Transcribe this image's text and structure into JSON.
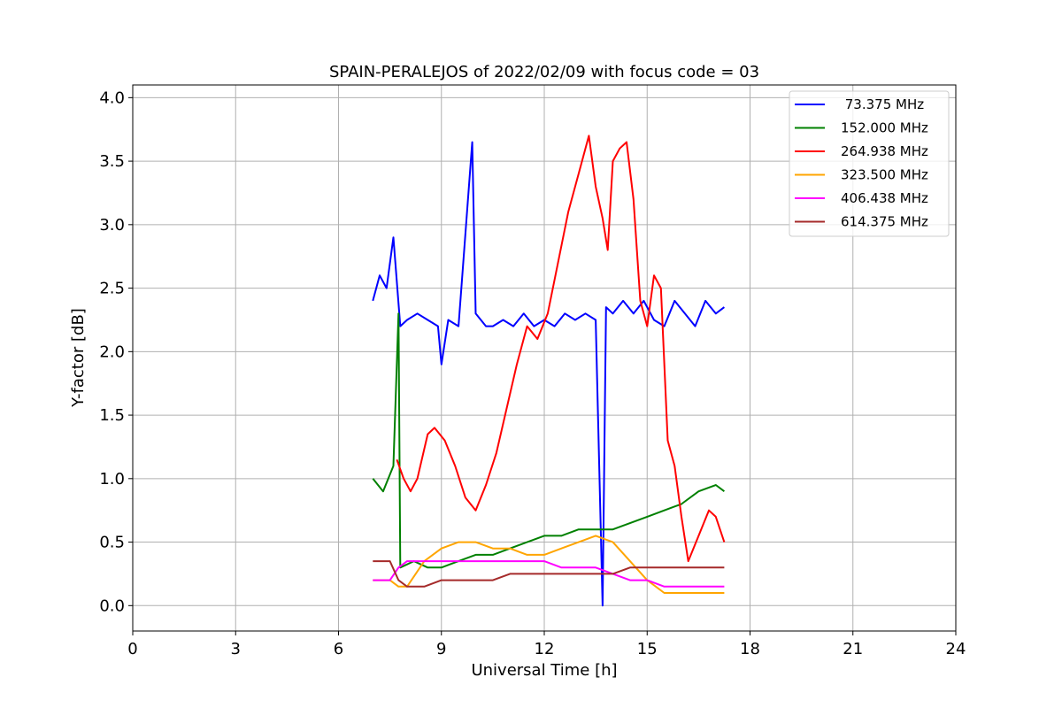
{
  "chart_data": {
    "type": "line",
    "title": "SPAIN-PERALEJOS of 2022/02/09 with focus code = 03",
    "xlabel": "Universal Time [h]",
    "ylabel": "Y-factor [dB]",
    "xlim": [
      0,
      24
    ],
    "ylim": [
      -0.2,
      4.1
    ],
    "xticks": [
      0,
      3,
      6,
      9,
      12,
      15,
      18,
      21,
      24
    ],
    "xtick_labels": [
      "0",
      "3",
      "6",
      "9",
      "12",
      "15",
      "18",
      "21",
      "24"
    ],
    "yticks": [
      0.0,
      0.5,
      1.0,
      1.5,
      2.0,
      2.5,
      3.0,
      3.5,
      4.0
    ],
    "ytick_labels": [
      "0.0",
      "0.5",
      "1.0",
      "1.5",
      "2.0",
      "2.5",
      "3.0",
      "3.5",
      "4.0"
    ],
    "grid": true,
    "legend_position": "top-right",
    "series": [
      {
        "name": " 73.375 MHz",
        "label": " 73.375 MHz",
        "color": "#0000ff",
        "x": [
          7.0,
          7.2,
          7.4,
          7.6,
          7.8,
          8.0,
          8.3,
          8.6,
          8.9,
          9.0,
          9.2,
          9.5,
          9.9,
          10.0,
          10.3,
          10.5,
          10.8,
          11.1,
          11.4,
          11.7,
          12.0,
          12.3,
          12.6,
          12.9,
          13.2,
          13.5,
          13.7,
          13.8,
          14.0,
          14.3,
          14.6,
          14.9,
          15.2,
          15.5,
          15.8,
          16.1,
          16.4,
          16.7,
          17.0,
          17.25
        ],
        "values": [
          2.4,
          2.6,
          2.5,
          2.9,
          2.2,
          2.25,
          2.3,
          2.25,
          2.2,
          1.9,
          2.25,
          2.2,
          3.65,
          2.3,
          2.2,
          2.2,
          2.25,
          2.2,
          2.3,
          2.2,
          2.25,
          2.2,
          2.3,
          2.25,
          2.3,
          2.25,
          0.0,
          2.35,
          2.3,
          2.4,
          2.3,
          2.4,
          2.25,
          2.2,
          2.4,
          2.3,
          2.2,
          2.4,
          2.3,
          2.35
        ]
      },
      {
        "name": "152.000 MHz",
        "label": "152.000 MHz",
        "color": "#008000",
        "x": [
          7.0,
          7.3,
          7.6,
          7.75,
          7.8,
          8.2,
          8.6,
          9.0,
          9.5,
          10.0,
          10.5,
          11.0,
          11.5,
          12.0,
          12.5,
          13.0,
          13.5,
          14.0,
          14.5,
          15.0,
          15.5,
          16.0,
          16.5,
          17.0,
          17.25
        ],
        "values": [
          1.0,
          0.9,
          1.1,
          2.3,
          0.3,
          0.35,
          0.3,
          0.3,
          0.35,
          0.4,
          0.4,
          0.45,
          0.5,
          0.55,
          0.55,
          0.6,
          0.6,
          0.6,
          0.65,
          0.7,
          0.75,
          0.8,
          0.9,
          0.95,
          0.9
        ]
      },
      {
        "name": "264.938 MHz",
        "label": "264.938 MHz",
        "color": "#ff0000",
        "x": [
          7.7,
          7.9,
          8.1,
          8.3,
          8.6,
          8.8,
          9.1,
          9.4,
          9.7,
          10.0,
          10.3,
          10.6,
          10.9,
          11.2,
          11.5,
          11.8,
          12.1,
          12.4,
          12.7,
          13.0,
          13.3,
          13.5,
          13.7,
          13.85,
          14.0,
          14.2,
          14.4,
          14.6,
          14.8,
          15.0,
          15.2,
          15.4,
          15.6,
          15.8,
          16.0,
          16.2,
          16.5,
          16.8,
          17.0,
          17.25
        ],
        "values": [
          1.15,
          1.0,
          0.9,
          1.0,
          1.35,
          1.4,
          1.3,
          1.1,
          0.85,
          0.75,
          0.95,
          1.2,
          1.55,
          1.9,
          2.2,
          2.1,
          2.3,
          2.7,
          3.1,
          3.4,
          3.7,
          3.3,
          3.05,
          2.8,
          3.5,
          3.6,
          3.65,
          3.2,
          2.4,
          2.2,
          2.6,
          2.5,
          1.3,
          1.1,
          0.7,
          0.35,
          0.55,
          0.75,
          0.7,
          0.5
        ]
      },
      {
        "name": "323.500 MHz",
        "label": "323.500 MHz",
        "color": "#ffa500",
        "x": [
          7.0,
          7.5,
          7.75,
          8.0,
          8.5,
          9.0,
          9.5,
          10.0,
          10.5,
          11.0,
          11.5,
          12.0,
          12.5,
          13.0,
          13.5,
          14.0,
          14.5,
          15.0,
          15.5,
          16.0,
          16.5,
          17.0,
          17.25
        ],
        "values": [
          0.2,
          0.2,
          0.15,
          0.15,
          0.35,
          0.45,
          0.5,
          0.5,
          0.45,
          0.45,
          0.4,
          0.4,
          0.45,
          0.5,
          0.55,
          0.5,
          0.35,
          0.2,
          0.1,
          0.1,
          0.1,
          0.1,
          0.1
        ]
      },
      {
        "name": "406.438 MHz",
        "label": "406.438 MHz",
        "color": "#ff00ff",
        "x": [
          7.0,
          7.5,
          7.75,
          8.0,
          8.5,
          9.0,
          9.5,
          10.0,
          10.5,
          11.0,
          11.5,
          12.0,
          12.5,
          13.0,
          13.5,
          14.0,
          14.5,
          15.0,
          15.5,
          16.0,
          16.5,
          17.0,
          17.25
        ],
        "values": [
          0.2,
          0.2,
          0.3,
          0.35,
          0.35,
          0.35,
          0.35,
          0.35,
          0.35,
          0.35,
          0.35,
          0.35,
          0.3,
          0.3,
          0.3,
          0.25,
          0.2,
          0.2,
          0.15,
          0.15,
          0.15,
          0.15,
          0.15
        ]
      },
      {
        "name": "614.375 MHz",
        "label": "614.375 MHz",
        "color": "#a52a2a",
        "x": [
          7.0,
          7.5,
          7.75,
          8.0,
          8.5,
          9.0,
          9.5,
          10.0,
          10.5,
          11.0,
          11.5,
          12.0,
          12.5,
          13.0,
          13.5,
          14.0,
          14.5,
          15.0,
          15.5,
          16.0,
          16.5,
          17.0,
          17.25
        ],
        "values": [
          0.35,
          0.35,
          0.2,
          0.15,
          0.15,
          0.2,
          0.2,
          0.2,
          0.2,
          0.25,
          0.25,
          0.25,
          0.25,
          0.25,
          0.25,
          0.25,
          0.3,
          0.3,
          0.3,
          0.3,
          0.3,
          0.3,
          0.3
        ]
      }
    ]
  }
}
